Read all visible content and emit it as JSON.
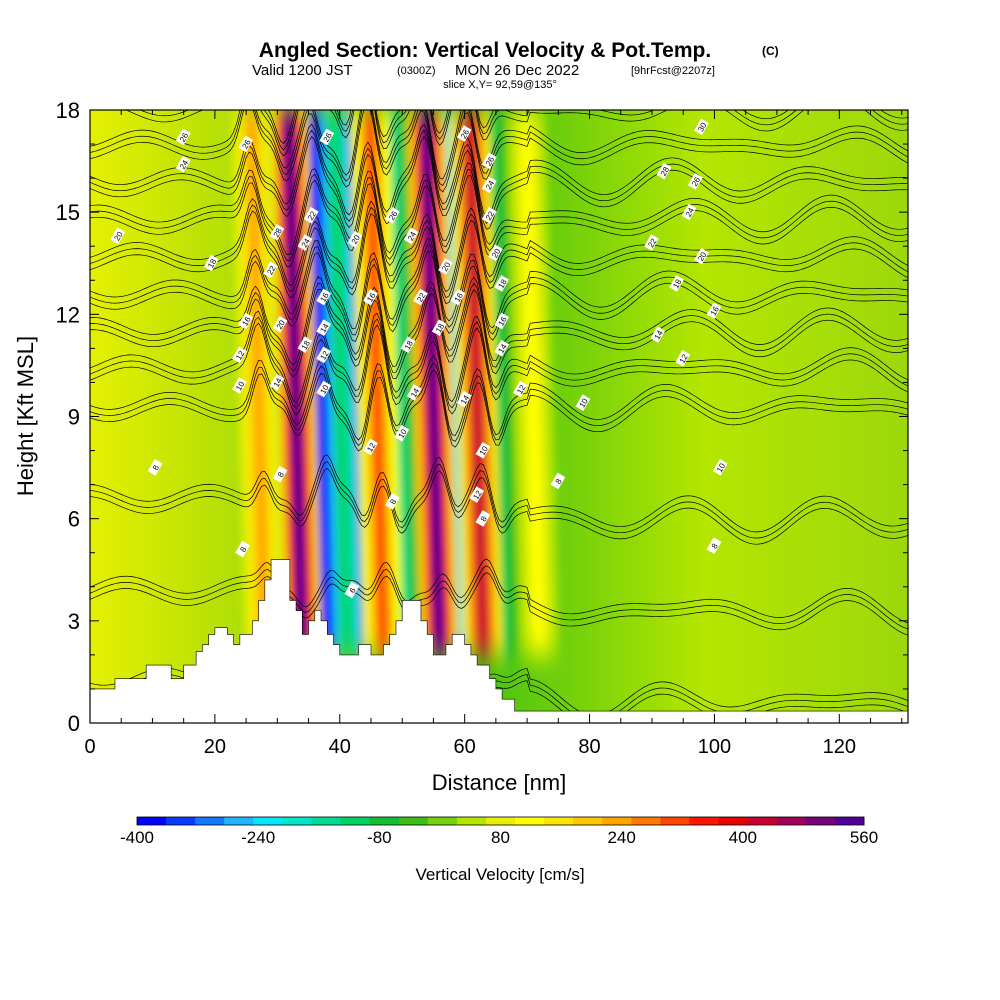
{
  "header": {
    "title": "Angled Section: Vertical Velocity & Pot.Temp.",
    "title_mark": "(C)",
    "subtitle_pre": "Valid 1200 JST",
    "subtitle_small1": "(0300Z)",
    "subtitle_mid": "MON 26 Dec 2022",
    "subtitle_small2": "[9hrFcst@2207z]",
    "slice_label": "slice X,Y= 92,59@135°"
  },
  "chart_data": {
    "type": "heatmap",
    "title": "Angled Section: Vertical Velocity & Pot.Temp.",
    "xlabel": "Distance [nm]",
    "ylabel": "Height [Kft MSL]",
    "xlim": [
      0,
      131
    ],
    "ylim": [
      0,
      18
    ],
    "x_ticks": [
      "0",
      "20",
      "40",
      "60",
      "80",
      "100",
      "120"
    ],
    "y_ticks": [
      "0",
      "3",
      "6",
      "9",
      "12",
      "15",
      "18"
    ],
    "colorbar": {
      "label": "Vertical Velocity [cm/s]",
      "tick_labels": [
        "-400",
        "-240",
        "-80",
        "80",
        "240",
        "400",
        "560"
      ],
      "min": -400,
      "max": 560,
      "colors": [
        "#0000ff",
        "#0a3cff",
        "#1478ff",
        "#1eb4ff",
        "#00e6ff",
        "#00e6c8",
        "#00dc96",
        "#00d264",
        "#14be32",
        "#3cbe14",
        "#78d20a",
        "#b4e600",
        "#e6f000",
        "#ffff00",
        "#ffe600",
        "#ffc800",
        "#ffa500",
        "#ff7800",
        "#ff4600",
        "#ff1400",
        "#e60000",
        "#c80032",
        "#a0005a",
        "#780078",
        "#500096"
      ]
    },
    "updraft_bands": [
      {
        "x": 34,
        "w_max": 560
      },
      {
        "x": 56,
        "w_max": 560
      },
      {
        "x": 47,
        "w_max": 320
      },
      {
        "x": 63,
        "w_max": 420
      },
      {
        "x": 28,
        "w_max": 240
      },
      {
        "x": 72,
        "w_max": 120
      }
    ],
    "downdraft_bands": [
      {
        "x": 31,
        "w_min": -240
      },
      {
        "x": 38,
        "w_min": -400
      },
      {
        "x": 44,
        "w_min": -320
      },
      {
        "x": 50,
        "w_min": -160
      },
      {
        "x": 59,
        "w_min": -240
      },
      {
        "x": 66,
        "w_min": -120
      }
    ],
    "terrain": [
      [
        0,
        1
      ],
      [
        4,
        1
      ],
      [
        4,
        1.3
      ],
      [
        9,
        1.3
      ],
      [
        9,
        1.7
      ],
      [
        13,
        1.7
      ],
      [
        13,
        1.3
      ],
      [
        15,
        1.3
      ],
      [
        15,
        1.7
      ],
      [
        17,
        1.7
      ],
      [
        17,
        2.1
      ],
      [
        18,
        2.1
      ],
      [
        18,
        2.3
      ],
      [
        19,
        2.3
      ],
      [
        19,
        2.6
      ],
      [
        20,
        2.6
      ],
      [
        20,
        2.8
      ],
      [
        22,
        2.8
      ],
      [
        22,
        2.6
      ],
      [
        23,
        2.6
      ],
      [
        23,
        2.3
      ],
      [
        24,
        2.3
      ],
      [
        24,
        2.6
      ],
      [
        26,
        2.6
      ],
      [
        26,
        3.0
      ],
      [
        27,
        3.0
      ],
      [
        27,
        3.6
      ],
      [
        28,
        3.6
      ],
      [
        28,
        4.2
      ],
      [
        29,
        4.2
      ],
      [
        29,
        4.8
      ],
      [
        32,
        4.8
      ],
      [
        32,
        3.6
      ],
      [
        33,
        3.6
      ],
      [
        33,
        3.3
      ],
      [
        34,
        3.3
      ],
      [
        34,
        2.6
      ],
      [
        35,
        2.6
      ],
      [
        35,
        3.0
      ],
      [
        36,
        3.0
      ],
      [
        36,
        3.3
      ],
      [
        37,
        3.3
      ],
      [
        37,
        3.0
      ],
      [
        38,
        3.0
      ],
      [
        38,
        2.6
      ],
      [
        39,
        2.6
      ],
      [
        39,
        2.3
      ],
      [
        40,
        2.3
      ],
      [
        40,
        2.0
      ],
      [
        43,
        2.0
      ],
      [
        43,
        2.3
      ],
      [
        45,
        2.3
      ],
      [
        45,
        2.0
      ],
      [
        47,
        2.0
      ],
      [
        47,
        2.3
      ],
      [
        48,
        2.3
      ],
      [
        48,
        2.6
      ],
      [
        49,
        2.6
      ],
      [
        49,
        3.0
      ],
      [
        50,
        3.0
      ],
      [
        50,
        3.6
      ],
      [
        53,
        3.6
      ],
      [
        53,
        3.0
      ],
      [
        54,
        3.0
      ],
      [
        54,
        2.6
      ],
      [
        55,
        2.6
      ],
      [
        55,
        2.0
      ],
      [
        57,
        2.0
      ],
      [
        57,
        2.3
      ],
      [
        58,
        2.3
      ],
      [
        58,
        2.6
      ],
      [
        60,
        2.6
      ],
      [
        60,
        2.3
      ],
      [
        61,
        2.3
      ],
      [
        61,
        2.0
      ],
      [
        62,
        2.0
      ],
      [
        62,
        1.7
      ],
      [
        64,
        1.7
      ],
      [
        64,
        1.3
      ],
      [
        65,
        1.3
      ],
      [
        65,
        1.0
      ],
      [
        66,
        1.0
      ],
      [
        66,
        0.7
      ],
      [
        68,
        0.7
      ],
      [
        68,
        0.35
      ],
      [
        70,
        0.35
      ],
      [
        70,
        0.35
      ],
      [
        131,
        0.35
      ]
    ],
    "theta_levels": [
      4,
      6,
      8,
      10,
      12,
      14,
      16,
      18,
      20,
      22,
      24,
      26,
      28,
      30
    ],
    "contour_labels": [
      {
        "v": "26",
        "x": 15,
        "y": 17.2
      },
      {
        "v": "24",
        "x": 15,
        "y": 16.4
      },
      {
        "v": "20",
        "x": 4.5,
        "y": 14.3
      },
      {
        "v": "26",
        "x": 25,
        "y": 17.0
      },
      {
        "v": "18",
        "x": 19.5,
        "y": 13.5
      },
      {
        "v": "16",
        "x": 25,
        "y": 11.8
      },
      {
        "v": "12",
        "x": 24,
        "y": 10.8
      },
      {
        "v": "10",
        "x": 24,
        "y": 9.9
      },
      {
        "v": "8",
        "x": 10.5,
        "y": 7.5
      },
      {
        "v": "8",
        "x": 24.5,
        "y": 5.1
      },
      {
        "v": "6",
        "x": 42,
        "y": 3.9
      },
      {
        "v": "8",
        "x": 30.5,
        "y": 7.3
      },
      {
        "v": "8",
        "x": 48.5,
        "y": 6.5
      },
      {
        "v": "28",
        "x": 30,
        "y": 14.4
      },
      {
        "v": "22",
        "x": 29,
        "y": 13.3
      },
      {
        "v": "20",
        "x": 30.5,
        "y": 11.7
      },
      {
        "v": "14",
        "x": 30,
        "y": 10.0
      },
      {
        "v": "24",
        "x": 34.5,
        "y": 14.1
      },
      {
        "v": "22",
        "x": 35.5,
        "y": 14.9
      },
      {
        "v": "18",
        "x": 34.5,
        "y": 11.1
      },
      {
        "v": "16",
        "x": 37.5,
        "y": 12.5
      },
      {
        "v": "14",
        "x": 37.5,
        "y": 11.6
      },
      {
        "v": "12",
        "x": 37.5,
        "y": 10.8
      },
      {
        "v": "10",
        "x": 37.5,
        "y": 9.8
      },
      {
        "v": "26",
        "x": 38,
        "y": 17.2
      },
      {
        "v": "20",
        "x": 42.5,
        "y": 14.2
      },
      {
        "v": "16",
        "x": 45,
        "y": 12.5
      },
      {
        "v": "12",
        "x": 45,
        "y": 8.1
      },
      {
        "v": "26",
        "x": 48.5,
        "y": 14.9
      },
      {
        "v": "24",
        "x": 51.5,
        "y": 14.3
      },
      {
        "v": "22",
        "x": 53,
        "y": 12.5
      },
      {
        "v": "18",
        "x": 51,
        "y": 11.1
      },
      {
        "v": "14",
        "x": 52,
        "y": 9.7
      },
      {
        "v": "10",
        "x": 50,
        "y": 8.5
      },
      {
        "v": "20",
        "x": 57,
        "y": 13.4
      },
      {
        "v": "18",
        "x": 56,
        "y": 11.6
      },
      {
        "v": "16",
        "x": 59,
        "y": 12.5
      },
      {
        "v": "14",
        "x": 60,
        "y": 9.5
      },
      {
        "v": "26",
        "x": 60,
        "y": 17.3
      },
      {
        "v": "26",
        "x": 64,
        "y": 16.5
      },
      {
        "v": "24",
        "x": 64,
        "y": 15.8
      },
      {
        "v": "22",
        "x": 64,
        "y": 14.9
      },
      {
        "v": "20",
        "x": 65,
        "y": 13.8
      },
      {
        "v": "18",
        "x": 66,
        "y": 12.9
      },
      {
        "v": "16",
        "x": 66,
        "y": 11.8
      },
      {
        "v": "14",
        "x": 66,
        "y": 11.0
      },
      {
        "v": "12",
        "x": 69,
        "y": 9.8
      },
      {
        "v": "10",
        "x": 63,
        "y": 8.0
      },
      {
        "v": "12",
        "x": 62,
        "y": 6.7
      },
      {
        "v": "8",
        "x": 63,
        "y": 6.0
      },
      {
        "v": "8",
        "x": 75,
        "y": 7.1
      },
      {
        "v": "10",
        "x": 79,
        "y": 9.4
      },
      {
        "v": "22",
        "x": 90,
        "y": 14.1
      },
      {
        "v": "20",
        "x": 98,
        "y": 13.7
      },
      {
        "v": "18",
        "x": 94,
        "y": 12.9
      },
      {
        "v": "16",
        "x": 100,
        "y": 12.1
      },
      {
        "v": "14",
        "x": 91,
        "y": 11.4
      },
      {
        "v": "12",
        "x": 95,
        "y": 10.7
      },
      {
        "v": "10",
        "x": 101,
        "y": 7.5
      },
      {
        "v": "8",
        "x": 100,
        "y": 5.2
      },
      {
        "v": "30",
        "x": 98,
        "y": 17.5
      },
      {
        "v": "28",
        "x": 92,
        "y": 16.2
      },
      {
        "v": "26",
        "x": 97,
        "y": 15.9
      },
      {
        "v": "24",
        "x": 96,
        "y": 15.0
      }
    ]
  }
}
